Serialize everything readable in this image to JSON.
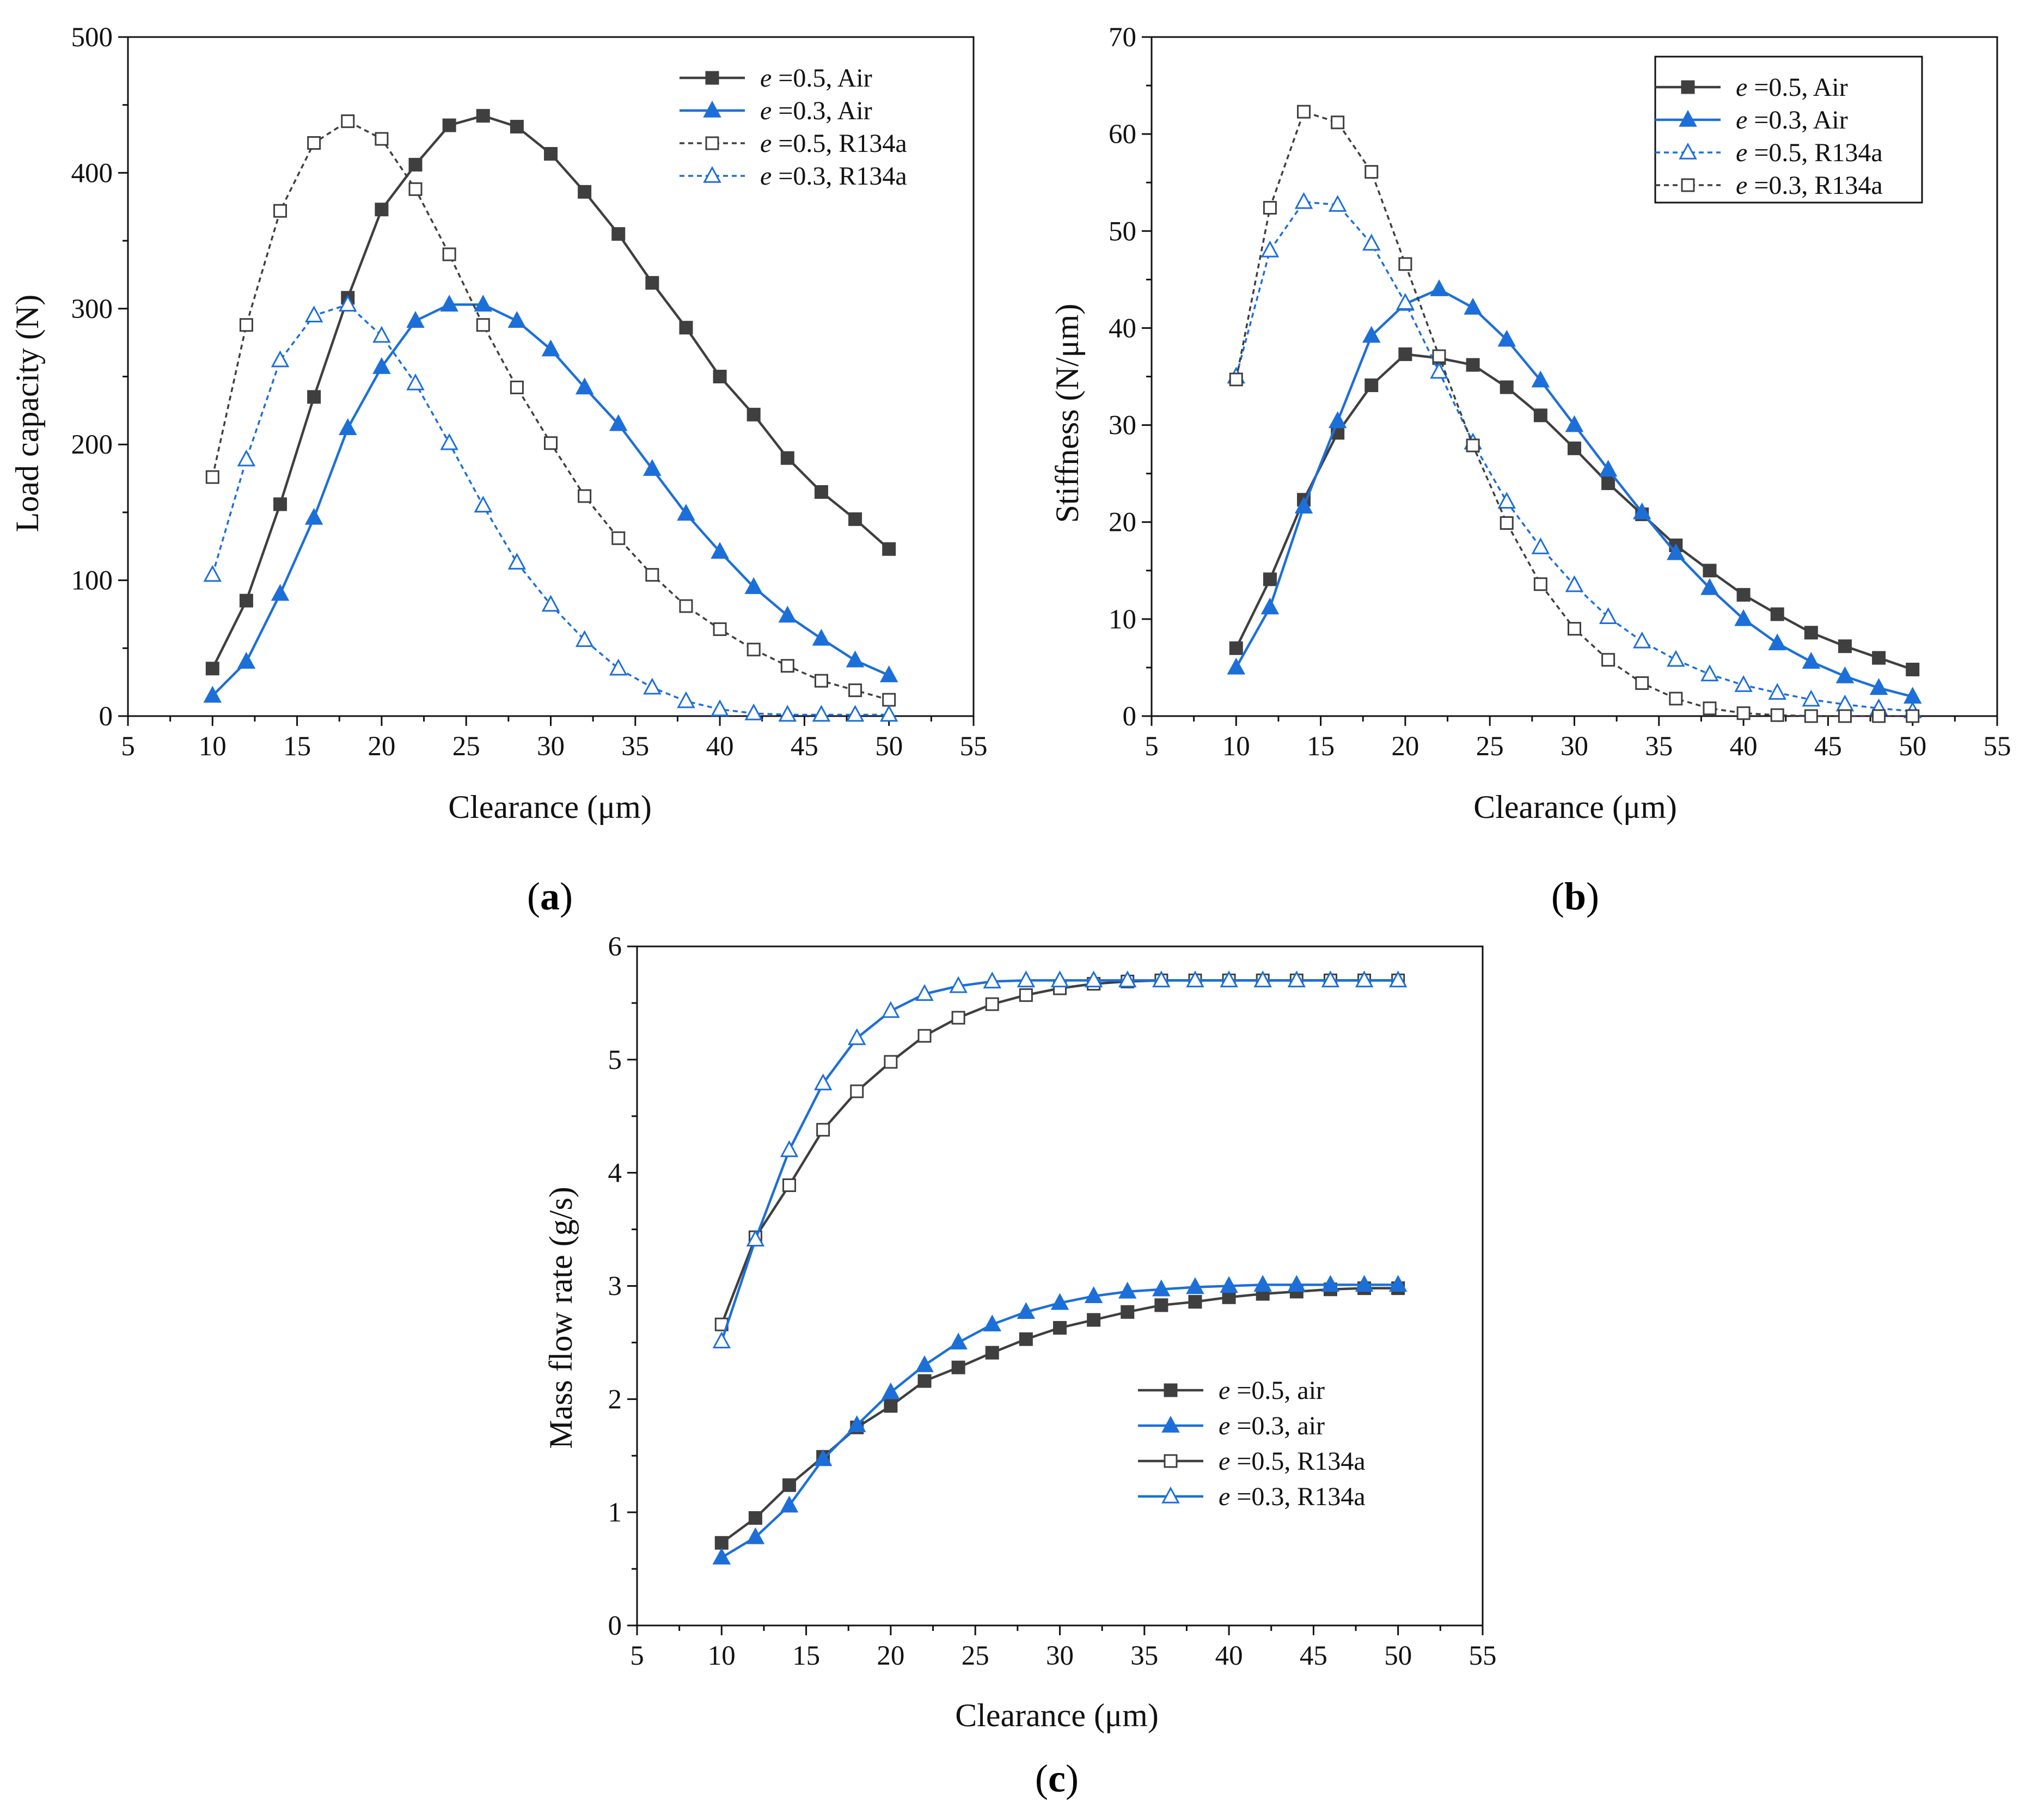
{
  "colors": {
    "dark": "#3f3f3f",
    "blue": "#1c6fd9",
    "axis": "#111111"
  },
  "chart_data": [
    {
      "type": "line",
      "panel": "(a)",
      "panel_letter": "a",
      "xlabel": "Clearance (μm)",
      "ylabel": "Load capacity (N)",
      "xlim": [
        5,
        55
      ],
      "ylim": [
        0,
        500
      ],
      "xticks": [
        5,
        10,
        15,
        20,
        25,
        30,
        35,
        40,
        45,
        50,
        55
      ],
      "yticks": [
        0,
        100,
        200,
        300,
        400,
        500
      ],
      "legend_position": "top-right",
      "legend_box": false,
      "x": [
        10,
        12,
        14,
        16,
        18,
        20,
        22,
        24,
        26,
        28,
        30,
        32,
        34,
        36,
        38,
        40,
        42,
        44,
        46,
        48,
        50
      ],
      "series": [
        {
          "name": "e =0.5, Air",
          "italic": "e",
          "rest": " =0.5, Air",
          "color": "dark",
          "marker": "square",
          "filled": true,
          "dashed": false,
          "values": [
            35,
            85,
            156,
            235,
            308,
            373,
            406,
            435,
            442,
            434,
            414,
            386,
            355,
            319,
            286,
            250,
            222,
            190,
            165,
            145,
            123
          ]
        },
        {
          "name": "e =0.3, Air",
          "italic": "e",
          "rest": " =0.3, Air",
          "color": "blue",
          "marker": "triangle",
          "filled": true,
          "dashed": false,
          "values": [
            15,
            40,
            90,
            146,
            212,
            257,
            291,
            303,
            303,
            291,
            270,
            242,
            215,
            182,
            149,
            121,
            95,
            74,
            57,
            41,
            30
          ]
        },
        {
          "name": "e =0.5, R134a",
          "italic": "e",
          "rest": " =0.5, R134a",
          "color": "dark",
          "marker": "square",
          "filled": false,
          "dashed": true,
          "values": [
            176,
            288,
            372,
            422,
            438,
            425,
            388,
            340,
            288,
            242,
            201,
            162,
            131,
            104,
            81,
            64,
            49,
            37,
            26,
            19,
            12
          ]
        },
        {
          "name": "e =0.3, R134a",
          "italic": "e",
          "rest": " =0.3, R134a",
          "color": "blue",
          "marker": "triangle",
          "filled": false,
          "dashed": true,
          "values": [
            104,
            189,
            262,
            295,
            303,
            280,
            245,
            201,
            155,
            113,
            82,
            56,
            35,
            21,
            11,
            5,
            2,
            1,
            1,
            1,
            1
          ]
        }
      ]
    },
    {
      "type": "line",
      "panel": "(b)",
      "panel_letter": "b",
      "xlabel": "Clearance (μm)",
      "ylabel": "Stiffness (N/μm)",
      "xlim": [
        5,
        55
      ],
      "ylim": [
        0,
        70
      ],
      "xticks": [
        5,
        10,
        15,
        20,
        25,
        30,
        35,
        40,
        45,
        50,
        55
      ],
      "yticks": [
        0,
        10,
        20,
        30,
        40,
        50,
        60,
        70
      ],
      "legend_position": "top-right",
      "legend_box": true,
      "x": [
        10,
        12,
        14,
        16,
        18,
        20,
        22,
        24,
        26,
        28,
        30,
        32,
        34,
        36,
        38,
        40,
        42,
        44,
        46,
        48,
        50
      ],
      "series": [
        {
          "name": "e =0.5, Air",
          "italic": "e",
          "rest": " =0.5, Air",
          "color": "dark",
          "marker": "square",
          "filled": true,
          "dashed": false,
          "values": [
            7.0,
            14.1,
            22.3,
            29.2,
            34.1,
            37.3,
            36.9,
            36.2,
            33.9,
            31.0,
            27.6,
            24.0,
            20.8,
            17.6,
            15.0,
            12.5,
            10.5,
            8.6,
            7.2,
            6.0,
            4.8
          ]
        },
        {
          "name": "e =0.3, Air",
          "italic": "e",
          "rest": " =0.3, Air",
          "color": "blue",
          "marker": "triangle",
          "filled": true,
          "dashed": false,
          "values": [
            5.0,
            11.2,
            21.6,
            30.4,
            39.2,
            42.5,
            44.0,
            42.1,
            38.8,
            34.6,
            30.0,
            25.4,
            21.0,
            16.8,
            13.2,
            10.0,
            7.5,
            5.6,
            4.1,
            2.9,
            2.0
          ]
        },
        {
          "name": "e =0.5, R134a",
          "italic": "e",
          "rest": " =0.5, R134a",
          "color": "blue",
          "marker": "triangle",
          "filled": false,
          "dashed": true,
          "values": [
            35.0,
            48.0,
            53.0,
            52.7,
            48.7,
            42.6,
            35.5,
            28.2,
            22.1,
            17.4,
            13.5,
            10.2,
            7.7,
            5.8,
            4.3,
            3.2,
            2.4,
            1.7,
            1.2,
            0.8,
            0.5
          ]
        },
        {
          "name": "e =0.3, R134a",
          "italic": "e",
          "rest": " =0.3, R134a",
          "color": "dark",
          "marker": "square",
          "filled": false,
          "dashed": true,
          "values": [
            34.7,
            52.4,
            62.3,
            61.2,
            56.1,
            46.6,
            37.1,
            27.9,
            19.9,
            13.6,
            9.0,
            5.8,
            3.4,
            1.8,
            0.8,
            0.3,
            0.1,
            0.0,
            0.0,
            0.0,
            0.0
          ]
        }
      ]
    },
    {
      "type": "line",
      "panel": "(c)",
      "panel_letter": "c",
      "xlabel": "Clearance (μm)",
      "ylabel": "Mass flow rate (g/s)",
      "xlim": [
        5,
        55
      ],
      "ylim": [
        0,
        6
      ],
      "xticks": [
        5,
        10,
        15,
        20,
        25,
        30,
        35,
        40,
        45,
        50,
        55
      ],
      "yticks": [
        0,
        1,
        2,
        3,
        4,
        5,
        6
      ],
      "legend_position": "lower-right",
      "legend_box": false,
      "x": [
        10,
        12,
        14,
        16,
        18,
        20,
        22,
        24,
        26,
        28,
        30,
        32,
        34,
        36,
        38,
        40,
        42,
        44,
        46,
        48,
        50
      ],
      "series": [
        {
          "name": "e =0.5, air",
          "italic": "e",
          "rest": " =0.5, air",
          "color": "dark",
          "marker": "square",
          "filled": true,
          "dashed": false,
          "values": [
            0.73,
            0.95,
            1.24,
            1.49,
            1.75,
            1.94,
            2.16,
            2.28,
            2.41,
            2.53,
            2.63,
            2.7,
            2.77,
            2.83,
            2.86,
            2.9,
            2.93,
            2.95,
            2.97,
            2.98,
            2.98
          ]
        },
        {
          "name": "e =0.3, air",
          "italic": "e",
          "rest": " =0.3, air",
          "color": "blue",
          "marker": "triangle",
          "filled": true,
          "dashed": false,
          "values": [
            0.6,
            0.78,
            1.06,
            1.47,
            1.77,
            2.06,
            2.3,
            2.5,
            2.66,
            2.77,
            2.85,
            2.91,
            2.95,
            2.97,
            2.99,
            3.0,
            3.01,
            3.01,
            3.01,
            3.01,
            3.01
          ]
        },
        {
          "name": "e =0.5, R134a",
          "italic": "e",
          "rest": " =0.5, R134a",
          "color": "dark",
          "marker": "square",
          "filled": false,
          "dashed": false,
          "values": [
            2.66,
            3.43,
            3.89,
            4.38,
            4.72,
            4.98,
            5.21,
            5.37,
            5.49,
            5.57,
            5.63,
            5.67,
            5.69,
            5.7,
            5.7,
            5.7,
            5.7,
            5.7,
            5.7,
            5.7,
            5.7
          ]
        },
        {
          "name": "e =0.3, R134a",
          "italic": "e",
          "rest": " =0.3, R134a",
          "color": "blue",
          "marker": "triangle",
          "filled": false,
          "dashed": false,
          "values": [
            2.51,
            3.41,
            4.2,
            4.79,
            5.19,
            5.43,
            5.58,
            5.65,
            5.69,
            5.7,
            5.7,
            5.7,
            5.7,
            5.7,
            5.7,
            5.7,
            5.7,
            5.7,
            5.7,
            5.7,
            5.7
          ]
        }
      ]
    }
  ]
}
